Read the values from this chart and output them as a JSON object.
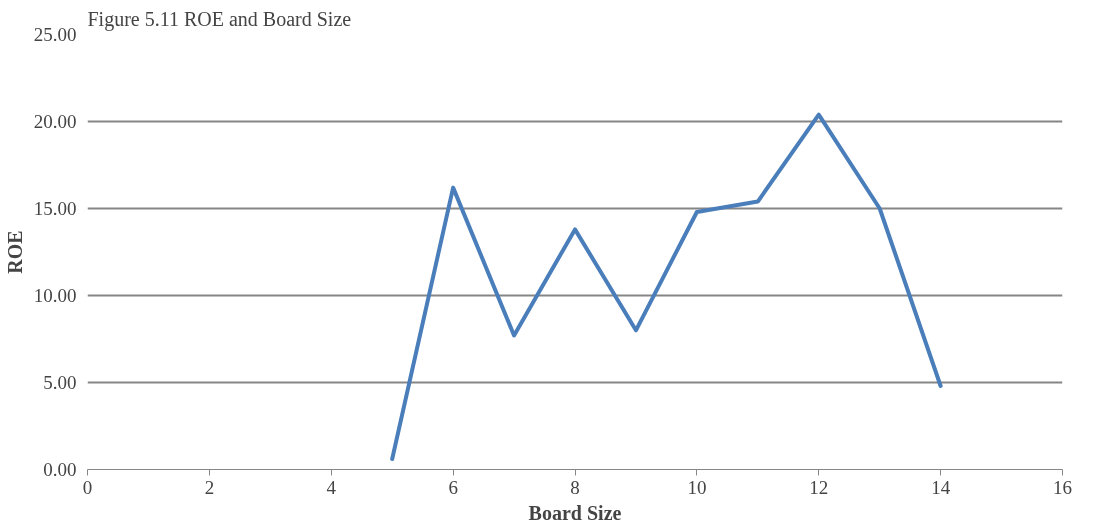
{
  "chart_data": {
    "type": "line",
    "title": "Figure 5.11 ROE and Board Size",
    "xlabel": "Board Size",
    "ylabel": "ROE",
    "x": [
      5,
      6,
      7,
      8,
      9,
      10,
      11,
      12,
      13,
      14
    ],
    "series": [
      {
        "color": "#4a7ebb",
        "values": [
          0.6,
          16.2,
          7.7,
          13.8,
          8.0,
          14.8,
          15.4,
          20.4,
          15.0,
          4.8
        ]
      }
    ],
    "xlim": [
      0,
      16
    ],
    "xticks": [
      0,
      2,
      4,
      6,
      8,
      10,
      12,
      14,
      16
    ],
    "ylim": [
      0,
      25
    ],
    "yticks": [
      {
        "value": 0,
        "label": "0.00"
      },
      {
        "value": 5,
        "label": "5.00"
      },
      {
        "value": 10,
        "label": "10.00"
      },
      {
        "value": 15,
        "label": "15.00"
      },
      {
        "value": 20,
        "label": "20.00"
      },
      {
        "value": 25,
        "label": "25.00"
      }
    ],
    "grid": "y",
    "marker": "none",
    "line_style": "solid"
  }
}
